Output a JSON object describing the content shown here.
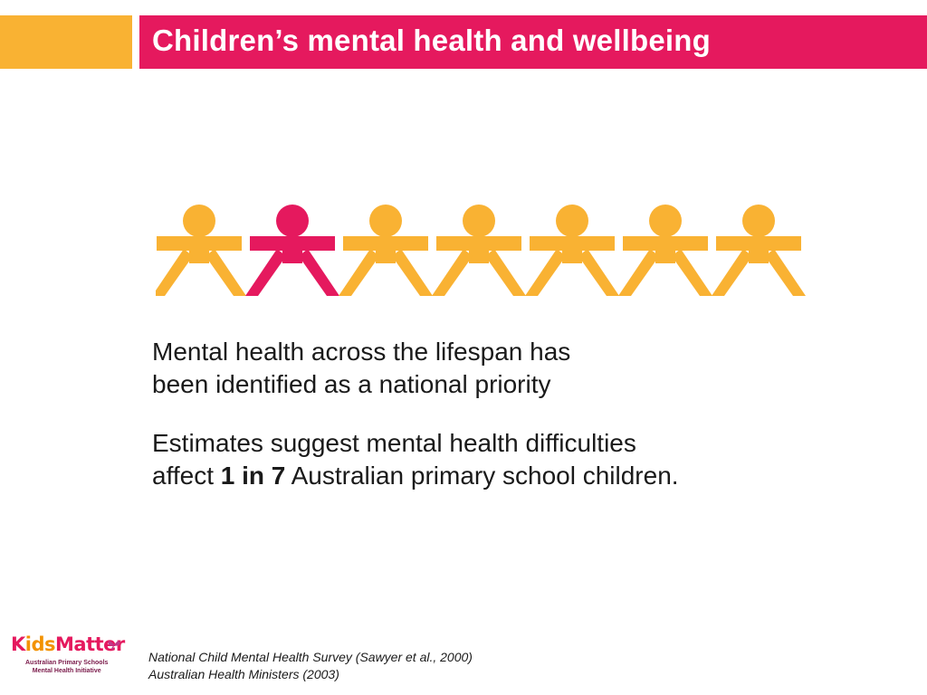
{
  "slide": {
    "title": "Children’s mental health and wellbeing"
  },
  "figures": {
    "count": 7,
    "highlighted_index": 1,
    "colors": {
      "default": "#f9b233",
      "highlight": "#e5195e"
    }
  },
  "content": {
    "para1_line1": "Mental health across the lifespan has",
    "para1_line2": "been identified as a national priority",
    "para2_line1": "Estimates suggest mental health difficulties",
    "para2_line2_pre": "affect ",
    "para2_line2_bold": "1 in 7",
    "para2_line2_post": " Australian primary school children."
  },
  "logo": {
    "k": "K",
    "ids": "ids",
    "matter": "Matter",
    "sub_line1": "Australian Primary Schools",
    "sub_line2": "Mental Health Initiative"
  },
  "references": {
    "line1": "National Child Mental Health Survey (Sawyer et al., 2000)",
    "line2": "Australian Health Ministers (2003)"
  },
  "colors": {
    "accent_orange": "#f9b233",
    "accent_magenta": "#e5195e"
  }
}
